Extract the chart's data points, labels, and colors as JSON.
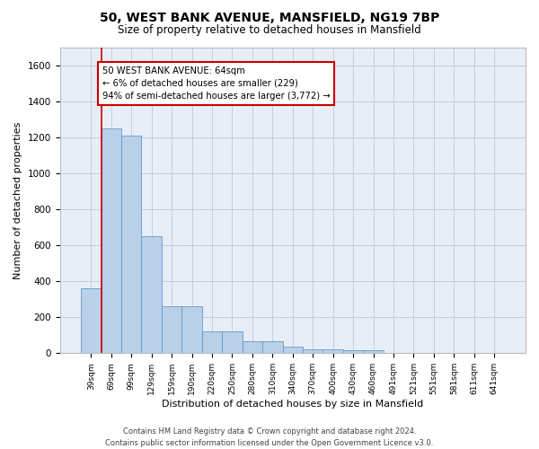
{
  "title1": "50, WEST BANK AVENUE, MANSFIELD, NG19 7BP",
  "title2": "Size of property relative to detached houses in Mansfield",
  "xlabel": "Distribution of detached houses by size in Mansfield",
  "ylabel": "Number of detached properties",
  "categories": [
    "39sqm",
    "69sqm",
    "99sqm",
    "129sqm",
    "159sqm",
    "190sqm",
    "220sqm",
    "250sqm",
    "280sqm",
    "310sqm",
    "340sqm",
    "370sqm",
    "400sqm",
    "430sqm",
    "460sqm",
    "491sqm",
    "521sqm",
    "551sqm",
    "581sqm",
    "611sqm",
    "641sqm"
  ],
  "values": [
    360,
    1250,
    1210,
    650,
    260,
    260,
    120,
    120,
    65,
    65,
    35,
    20,
    20,
    15,
    15,
    0,
    0,
    0,
    0,
    0,
    0
  ],
  "bar_color": "#b8d0e8",
  "bar_edge_color": "#6699cc",
  "vline_color": "#cc0000",
  "annotation_text": "50 WEST BANK AVENUE: 64sqm\n← 6% of detached houses are smaller (229)\n94% of semi-detached houses are larger (3,772) →",
  "annotation_box_color": "#cc0000",
  "ylim": [
    0,
    1700
  ],
  "yticks": [
    0,
    200,
    400,
    600,
    800,
    1000,
    1200,
    1400,
    1600
  ],
  "grid_color": "#c0cce0",
  "bg_color": "#e8eef8",
  "footer": "Contains HM Land Registry data © Crown copyright and database right 2024.\nContains public sector information licensed under the Open Government Licence v3.0."
}
